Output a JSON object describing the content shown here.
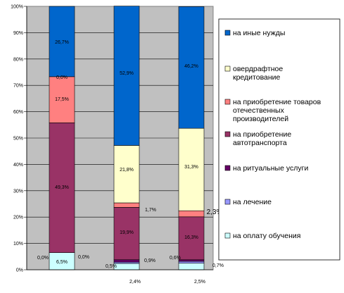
{
  "chart_data": {
    "type": "bar",
    "stacked": true,
    "percent": true,
    "grid": true,
    "legend_position": "right",
    "categories": [
      "",
      "2,4%",
      "2,5%"
    ],
    "y_ticks": [
      "0%",
      "10%",
      "20%",
      "30%",
      "40%",
      "50%",
      "60%",
      "70%",
      "80%",
      "90%",
      "100%"
    ],
    "ylim": [
      0,
      100
    ],
    "series": [
      {
        "name": "на оплату обучения",
        "color": "#CCFFFF",
        "values": [
          6.5,
          2.4,
          2.5
        ],
        "labels": [
          "6,5%",
          "",
          ""
        ]
      },
      {
        "name": "на лечение",
        "color": "#9999FF",
        "values": [
          0.0,
          0.5,
          0.7
        ],
        "labels": [
          "0,0%",
          "0,5%",
          "0,7%"
        ]
      },
      {
        "name": "на ритуальные услуги",
        "color": "#660066",
        "values": [
          0.0,
          0.9,
          0.6
        ],
        "labels": [
          "0,0%",
          "0,9%",
          "0,6%"
        ]
      },
      {
        "name": "на приобретение автотранспорта",
        "color": "#993366",
        "values": [
          49.3,
          19.9,
          16.3
        ],
        "labels": [
          "49,3%",
          "19,9%",
          "16,3%"
        ]
      },
      {
        "name": "на приобретение товаров отечественных производителей",
        "color": "#FF8080",
        "values": [
          17.5,
          1.7,
          2.3
        ],
        "labels": [
          "17,5%",
          "1,7%",
          "2,3%"
        ]
      },
      {
        "name": "овердрафтное кредитование",
        "color": "#FFFFCC",
        "values": [
          0.0,
          21.8,
          31.3
        ],
        "labels": [
          "0,0%",
          "21,8%",
          "31,3%"
        ]
      },
      {
        "name": "на иные нужды",
        "color": "#0066CC",
        "values": [
          26.7,
          52.9,
          46.2
        ],
        "labels": [
          "26,7%",
          "52,9%",
          "46,2%"
        ]
      }
    ]
  },
  "legend": {
    "items": [
      {
        "lines": [
          "на иные нужды"
        ],
        "color": "#0066CC"
      },
      {
        "lines": [
          "овердрафтное",
          "кредитование"
        ],
        "color": "#FFFFCC"
      },
      {
        "lines": [
          "на приобретение товаров",
          "отечественных",
          "производителей"
        ],
        "color": "#FF8080"
      },
      {
        "lines": [
          "на приобретение",
          "автотранспорта"
        ],
        "color": "#993366"
      },
      {
        "lines": [
          "на ритуальные услуги"
        ],
        "color": "#660066"
      },
      {
        "lines": [
          "на лечение"
        ],
        "color": "#9999FF"
      },
      {
        "lines": [
          "на оплату обучения"
        ],
        "color": "#CCFFFF"
      }
    ]
  },
  "colors": {
    "plot_background": "#C0C0C0",
    "gridline": "#000000"
  }
}
